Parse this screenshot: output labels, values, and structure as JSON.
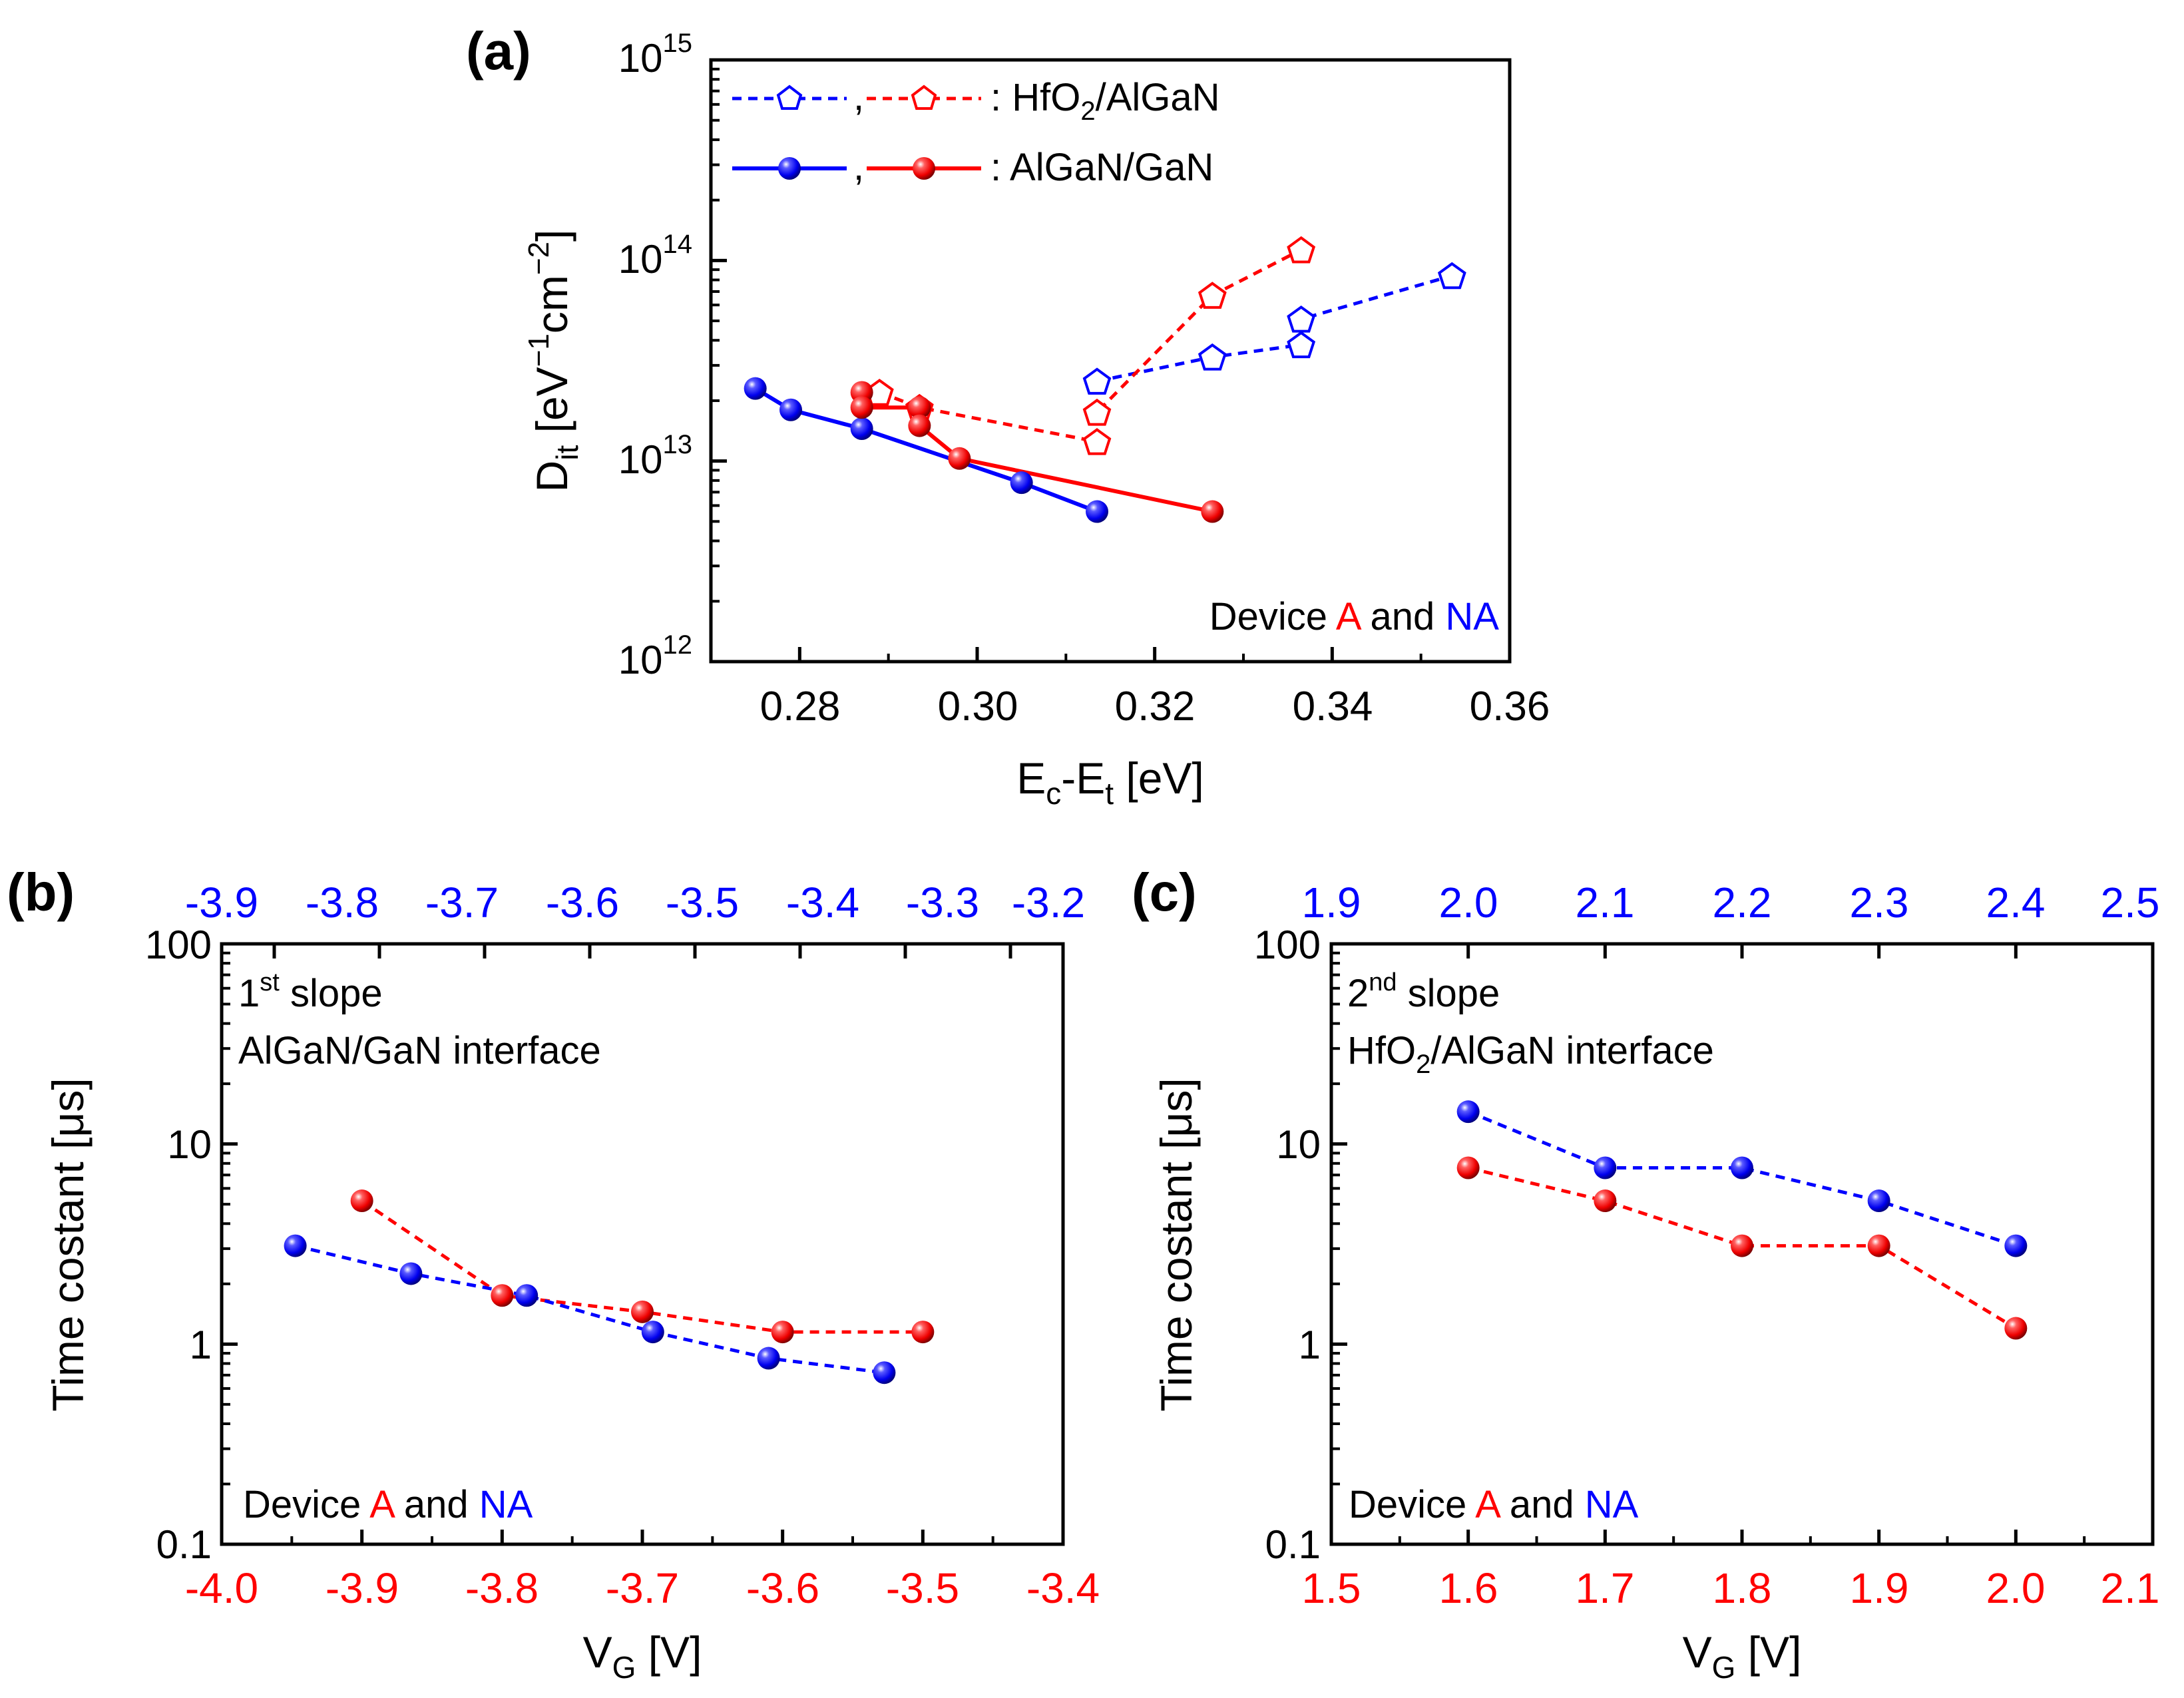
{
  "colors": {
    "red": "#ff0000",
    "blue": "#0000ff",
    "axis": "#000000"
  },
  "panel_a": {
    "label": "(a)",
    "xlabel_main": "E",
    "xlabel_sub1": "c",
    "xlabel_mid": "-E",
    "xlabel_sub2": "t",
    "xlabel_unit": " [eV]",
    "ylabel_main": "D",
    "ylabel_sub": "it",
    "ylabel_rest1": " [eV",
    "ylabel_sup1": "−1",
    "ylabel_rest2": "cm",
    "ylabel_sup2": "−2",
    "ylabel_rest3": "]",
    "legend": {
      "row1_sep": ",",
      "row1_label": ": HfO",
      "row1_sub": "2",
      "row1_label2": "/AlGaN",
      "row2_sep": ",",
      "row2_label": ": AlGaN/GaN"
    },
    "note": {
      "prefix": "Device ",
      "a": "A",
      "mid": " and ",
      "na": "NA"
    },
    "y_tick_base": "10",
    "y_tick_exponents": [
      "12",
      "13",
      "14",
      "15"
    ],
    "x_tick_labels": [
      "0.28",
      "0.30",
      "0.32",
      "0.34",
      "0.36"
    ]
  },
  "panel_b": {
    "label": "(b)",
    "ylabel": "Time costant [μs]",
    "xlabel_main": "V",
    "xlabel_sub": "G",
    "xlabel_unit": " [V]",
    "annot_sup_base": "1",
    "annot_sup": "st",
    "annot_line1_rest": " slope",
    "annot_line2": "AlGaN/GaN interface",
    "note": {
      "prefix": "Device ",
      "a": "A",
      "mid": " and ",
      "na": "NA"
    },
    "y_tick_labels": [
      "0.1",
      "1",
      "10",
      "100"
    ],
    "x_bottom_tick_labels": [
      "-4.0",
      "-3.9",
      "-3.8",
      "-3.7",
      "-3.6",
      "-3.5",
      "-3.4"
    ],
    "x_top_tick_labels": [
      "-3.9",
      "-3.8",
      "-3.7",
      "-3.6",
      "-3.5",
      "-3.4",
      "-3.3",
      "-3.2"
    ]
  },
  "panel_c": {
    "label": "(c)",
    "ylabel": "Time costant [μs]",
    "xlabel_main": "V",
    "xlabel_sub": "G",
    "xlabel_unit": " [V]",
    "annot_sup_base": "2",
    "annot_sup": "nd",
    "annot_line1_rest": " slope",
    "annot_line2_main": "HfO",
    "annot_line2_sub": "2",
    "annot_line2_rest": "/AlGaN interface",
    "note": {
      "prefix": "Device ",
      "a": "A",
      "mid": " and ",
      "na": "NA"
    },
    "y_tick_labels": [
      "0.1",
      "1",
      "10",
      "100"
    ],
    "x_bottom_tick_labels": [
      "1.5",
      "1.6",
      "1.7",
      "1.8",
      "1.9",
      "2.0",
      "2.1"
    ],
    "x_top_tick_labels": [
      "1.9",
      "2.0",
      "2.1",
      "2.2",
      "2.3",
      "2.4",
      "2.5"
    ]
  },
  "chart_data": [
    {
      "panel": "a",
      "type": "scatter",
      "title": "(a)",
      "xlabel": "Ec-Et [eV]",
      "ylabel": "Dit [eV^-1 cm^-2]",
      "xlim": [
        0.27,
        0.36
      ],
      "ylim": [
        1000000000000.0,
        1000000000000000.0
      ],
      "yscale": "log",
      "legend_position": "top-left",
      "series": [
        {
          "name": "HfO2/AlGaN (Device NA)",
          "color": "#0000ff",
          "marker": "pentagon-open",
          "line": "dashed",
          "x": [
            0.3135,
            0.3265,
            0.3365,
            0.3365,
            0.3535
          ],
          "y": [
            25000000000000.0,
            33000000000000.0,
            38000000000000.0,
            51000000000000.0,
            84000000000000.0
          ]
        },
        {
          "name": "HfO2/AlGaN (Device A)",
          "color": "#ff0000",
          "marker": "pentagon-open",
          "line": "dashed",
          "x": [
            0.289,
            0.2935,
            0.3135,
            0.3135,
            0.3265,
            0.3365
          ],
          "y": [
            22000000000000.0,
            18500000000000.0,
            12500000000000.0,
            17500000000000.0,
            67000000000000.0,
            113000000000000.0
          ]
        },
        {
          "name": "AlGaN/GaN (Device NA)",
          "color": "#0000ff",
          "marker": "ball",
          "line": "solid",
          "x": [
            0.275,
            0.279,
            0.287,
            0.305,
            0.3135
          ],
          "y": [
            23000000000000.0,
            18000000000000.0,
            14500000000000.0,
            7800000000000.0,
            5600000000000.0
          ]
        },
        {
          "name": "AlGaN/GaN (Device A)",
          "color": "#ff0000",
          "marker": "ball",
          "line": "solid",
          "x": [
            0.287,
            0.287,
            0.2935,
            0.2935,
            0.298,
            0.3265
          ],
          "y": [
            22000000000000.0,
            18500000000000.0,
            18500000000000.0,
            15000000000000.0,
            10300000000000.0,
            5600000000000.0
          ]
        }
      ]
    },
    {
      "panel": "b",
      "type": "line",
      "title": "(b)",
      "xlabel": "VG [V]",
      "ylabel": "Time costant [μs]",
      "yscale": "log",
      "ylim": [
        0.1,
        100
      ],
      "xlim_bottom": [
        -4.0,
        -3.4
      ],
      "xlim_top": [
        -3.95,
        -3.15
      ],
      "series": [
        {
          "name": "Device A",
          "color": "#ff0000",
          "axis": "bottom",
          "line": "dashed",
          "x": [
            -3.9,
            -3.8,
            -3.7,
            -3.6,
            -3.5
          ],
          "y": [
            5.2,
            1.75,
            1.45,
            1.15,
            1.15
          ]
        },
        {
          "name": "Device NA",
          "color": "#0000ff",
          "axis": "top",
          "line": "dashed",
          "x": [
            -3.88,
            -3.77,
            -3.66,
            -3.54,
            -3.43,
            -3.32
          ],
          "y": [
            3.1,
            2.25,
            1.75,
            1.15,
            0.85,
            0.72
          ]
        }
      ]
    },
    {
      "panel": "c",
      "type": "line",
      "title": "(c)",
      "xlabel": "VG [V]",
      "ylabel": "Time costant [μs]",
      "yscale": "log",
      "ylim": [
        0.1,
        100
      ],
      "xlim_bottom": [
        1.5,
        2.1
      ],
      "xlim_top": [
        1.9,
        2.5
      ],
      "series": [
        {
          "name": "Device A",
          "color": "#ff0000",
          "axis": "bottom",
          "line": "dashed",
          "x": [
            1.6,
            1.7,
            1.8,
            1.9,
            2.0
          ],
          "y": [
            7.6,
            5.2,
            3.1,
            3.1,
            1.2
          ]
        },
        {
          "name": "Device NA",
          "color": "#0000ff",
          "axis": "top",
          "line": "dashed",
          "x": [
            2.0,
            2.1,
            2.2,
            2.3,
            2.4
          ],
          "y": [
            14.5,
            7.6,
            7.6,
            5.2,
            3.1
          ]
        }
      ]
    }
  ]
}
